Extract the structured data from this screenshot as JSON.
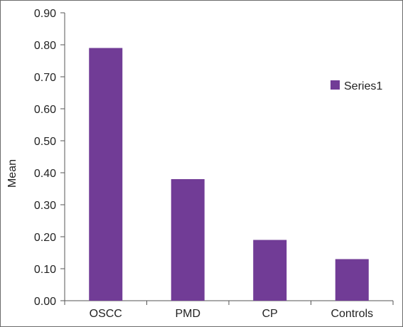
{
  "chart_data": {
    "type": "bar",
    "title": "",
    "xlabel": "",
    "ylabel": "Mean",
    "categories": [
      "OSCC",
      "PMD",
      "CP",
      "Controls"
    ],
    "series": [
      {
        "name": "Series1",
        "values": [
          0.79,
          0.38,
          0.19,
          0.13
        ],
        "color": "#713c96"
      }
    ],
    "ylim": [
      0,
      0.9
    ],
    "yticks": [
      "0.00",
      "0.10",
      "0.20",
      "0.30",
      "0.40",
      "0.50",
      "0.60",
      "0.70",
      "0.80",
      "0.90"
    ],
    "grid": false,
    "legend": "right"
  }
}
